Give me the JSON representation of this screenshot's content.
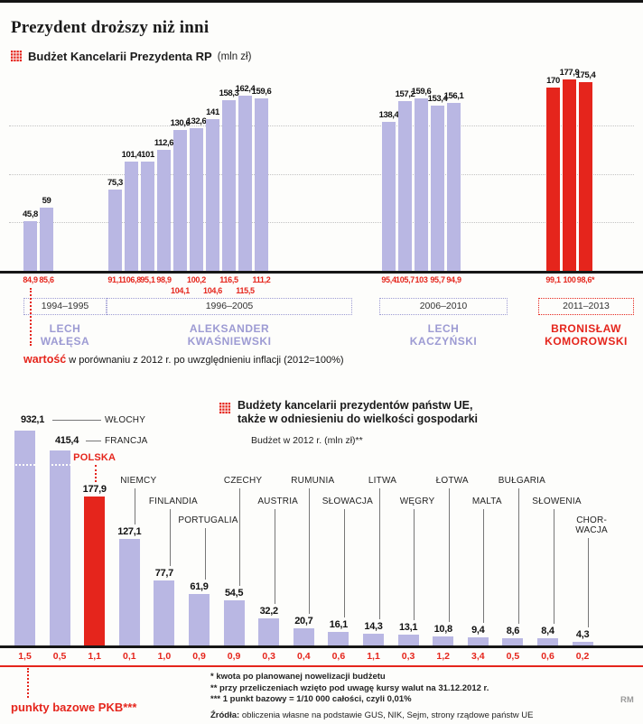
{
  "page": {
    "title": "Prezydent droższy niż inni",
    "credit": "RM"
  },
  "colors": {
    "red": "#e5251c",
    "lavender": "#b9b7e3",
    "lavender_text": "#9d9bd3"
  },
  "chart1": {
    "legend_title": "Budżet Kancelarii Prezydenta RP",
    "legend_unit": "(mln zł)",
    "note_highlight": "wartość",
    "note_rest": " w porównaniu z 2012 r. po uwzględnieniu inflacji (2012=100%)"
  },
  "chart2": {
    "title_line1": "Budżety kancelarii prezydentów państw UE,",
    "title_line2": "także w odniesieniu do wielkości gospodarki",
    "subtitle": "Budżet w 2012 r. (mln zł)**",
    "points_label": "punkty bazowe PKB***",
    "footnote1": "* kwota po planowanej nowelizacji budżetu",
    "footnote2": "** przy przeliczeniach wzięto pod uwagę kursy walut na 31.12.2012 r.",
    "footnote3": "*** 1 punkt bazowy = 1/10 000 całości, czyli 0,01%",
    "sources_prefix": "Źródła:",
    "sources_rest": " obliczenia własne na podstawie GUS, NIK, Sejm, strony rządowe państw UE"
  },
  "chart_data": [
    {
      "type": "bar",
      "title": "Budżet Kancelarii Prezydenta RP (mln zł)",
      "ylabel": "mln zł",
      "ylim": [
        0,
        180
      ],
      "gridlines": [
        45,
        90,
        135
      ],
      "legend_note": "wartość w porównaniu z 2012 r. po uwzględnieniu inflacji (2012=100%)",
      "groups": [
        {
          "president": [
            "LECH",
            "WAŁĘSA"
          ],
          "period": "1994–1995",
          "highlight": false,
          "years_values": [
            45.8,
            59
          ],
          "value_labels": [
            "45,8",
            "59"
          ],
          "inflation_adjusted_labels": [
            "84,9",
            "85,6"
          ]
        },
        {
          "president": [
            "ALEKSANDER",
            "KWAŚNIEWSKI"
          ],
          "period": "1996–2005",
          "highlight": false,
          "years_values": [
            75.3,
            101.4,
            101,
            112.6,
            130.6,
            132.6,
            141,
            158.3,
            162.4,
            159.6
          ],
          "value_labels": [
            "75,3",
            "101,4",
            "101",
            "112,6",
            "130,6",
            "132,6",
            "141",
            "158,3",
            "162,4",
            "159,6"
          ],
          "inflation_adjusted_labels": [
            "91,1",
            "106,8",
            "95,1",
            "98,9",
            "104,1",
            "100,2",
            "104,6",
            "116,5",
            "115,5",
            "111,2"
          ]
        },
        {
          "president": [
            "LECH",
            "KACZYŃSKI"
          ],
          "period": "2006–2010",
          "highlight": false,
          "years_values": [
            138.4,
            157.2,
            159.6,
            153.4,
            156.1
          ],
          "value_labels": [
            "138,4",
            "157,2",
            "159,6",
            "153,4",
            "156,1"
          ],
          "inflation_adjusted_labels": [
            "95,4",
            "105,7",
            "103",
            "95,7",
            "94,9"
          ]
        },
        {
          "president": [
            "BRONISŁAW",
            "KOMOROWSKI"
          ],
          "period": "2011–2013",
          "highlight": true,
          "years_values": [
            170,
            177.9,
            175.4
          ],
          "value_labels": [
            "170",
            "177,9",
            "175,4"
          ],
          "inflation_adjusted_labels": [
            "99,1",
            "100",
            "98,6*"
          ]
        }
      ]
    },
    {
      "type": "bar",
      "title": "Budżety kancelarii prezydentów państw UE, także w odniesieniu do wielkości gospodarki",
      "subtitle": "Budżet w 2012 r. (mln zł)**",
      "categories": [
        "WŁOCHY",
        "FRANCJA",
        "POLSKA",
        "NIEMCY",
        "FINLANDIA",
        "PORTUGALIA",
        "CZECHY",
        "AUSTRIA",
        "RUMUNIA",
        "SŁOWACJA",
        "LITWA",
        "WĘGRY",
        "ŁOTWA",
        "MALTA",
        "BUŁGARIA",
        "SŁOWENIA",
        "CHORWACJA"
      ],
      "values": [
        932.1,
        415.4,
        177.9,
        127.1,
        77.7,
        61.9,
        54.5,
        32.2,
        20.7,
        16.1,
        14.3,
        13.1,
        10.8,
        9.4,
        8.6,
        8.4,
        4.3
      ],
      "value_labels": [
        "932,1",
        "415,4",
        "177,9",
        "127,1",
        "77,7",
        "61,9",
        "54,5",
        "32,2",
        "20,7",
        "16,1",
        "14,3",
        "13,1",
        "10,8",
        "9,4",
        "8,6",
        "8,4",
        "4,3"
      ],
      "gdp_basis_points": [
        1.5,
        0.5,
        1.1,
        0.1,
        1.0,
        0.9,
        0.9,
        0.3,
        0.4,
        0.6,
        1.1,
        0.3,
        1.2,
        3.4,
        0.5,
        0.6,
        0.2
      ],
      "gdp_basis_points_labels": [
        "1,5",
        "0,5",
        "1,1",
        "0,1",
        "1,0",
        "0,9",
        "0,9",
        "0,3",
        "0,4",
        "0,6",
        "1,1",
        "0,3",
        "1,2",
        "3,4",
        "0,5",
        "0,6",
        "0,2"
      ],
      "highlight_index": 2,
      "truncated": [
        "WŁOCHY",
        "FRANCJA"
      ]
    }
  ]
}
